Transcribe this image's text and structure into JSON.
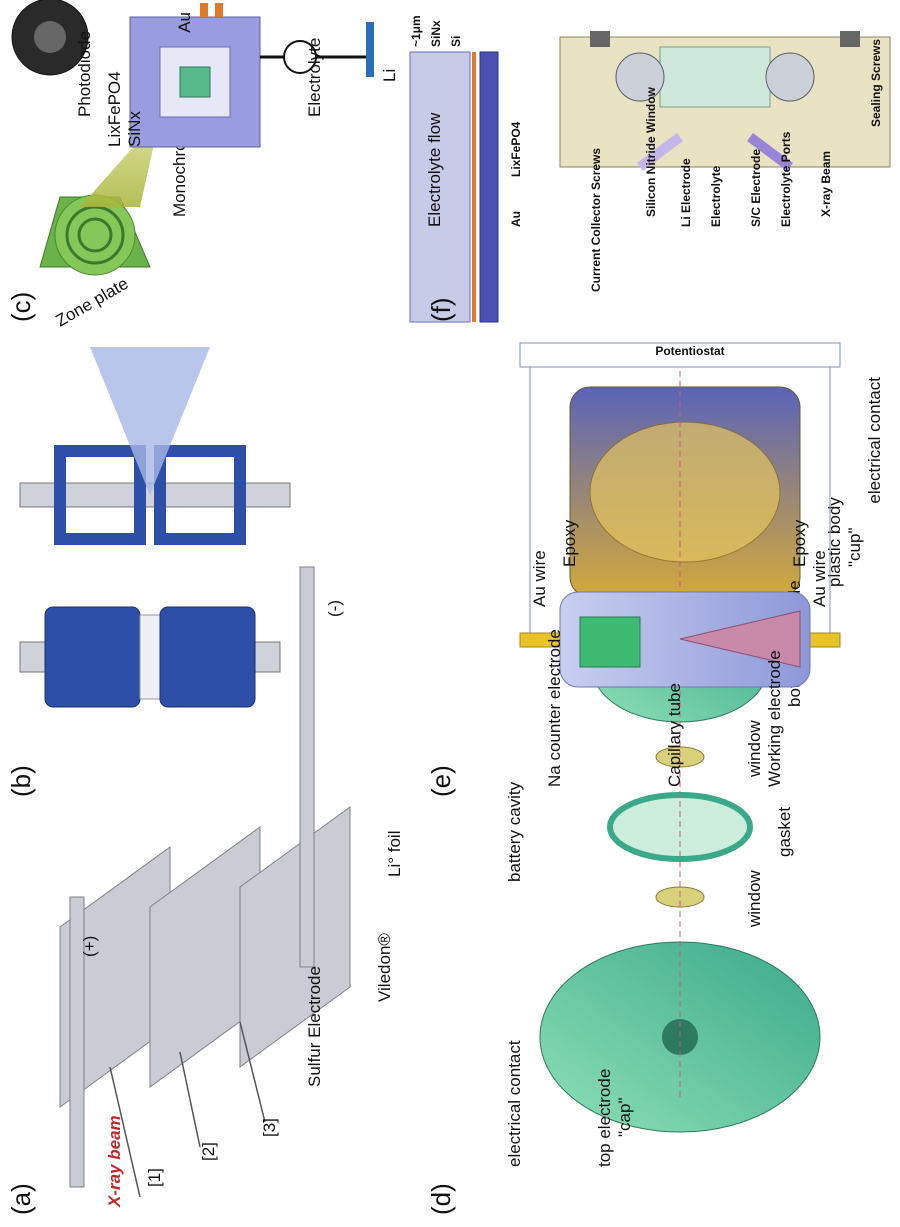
{
  "panels": {
    "a": {
      "label": "(a)",
      "xray": "X-ray beam",
      "plus": "(+)",
      "minus": "(-)",
      "items": [
        "[1]",
        "[2]",
        "[3]"
      ],
      "sulfur": "Sulfur Electrode",
      "viledon": "Viledon®",
      "lifoil": "Li° foil"
    },
    "b": {
      "label": "(b)"
    },
    "c": {
      "label": "(c)",
      "zone_plate": "Zone plate",
      "mono": "Monochromatic X-ray",
      "photodiode": "Photodiode",
      "lifepo4": "LixFePO4",
      "sinx": "SiNx",
      "au": "Au",
      "electrolyte": "Electrolyte",
      "li": "Li",
      "flow": "Electrolyte flow",
      "um": "~1μm",
      "si": "Si"
    },
    "d": {
      "label": "(d)",
      "top_electrode": "top electrode",
      "cap": "\"cap\"",
      "elec_contact": "electrical contact",
      "battery_cavity": "battery cavity",
      "window": "window",
      "gasket": "gasket",
      "bottom_electrode": "bottom electrode",
      "plastic_body": "plastic body",
      "cup": "\"cup\""
    },
    "e": {
      "label": "(e)",
      "na_counter": "Na counter electrode",
      "capillary": "Capillary tube",
      "working": "Working electrode",
      "au_wire": "Au wire",
      "epoxy": "Epoxy",
      "potentiostat": "Potentiostat"
    },
    "f": {
      "label": "(f)",
      "current_collector": "Current Collector Screws",
      "electrolyte_ports": "Electrolyte Ports",
      "sc_electrode": "S/C Electrode",
      "electrolyte": "Electrolyte",
      "li_electrode": "Li Electrode",
      "sealing": "Sealing Screws",
      "xray_beam": "X-ray Beam",
      "sin_window": "Silicon Nitride Window"
    }
  },
  "colors": {
    "blue": "#2e4fa8",
    "green": "#6ed3a0",
    "gold": "#d3a63a",
    "lavender": "#9a9ce0",
    "beige": "#e9e3c4",
    "red": "#c0282a"
  }
}
